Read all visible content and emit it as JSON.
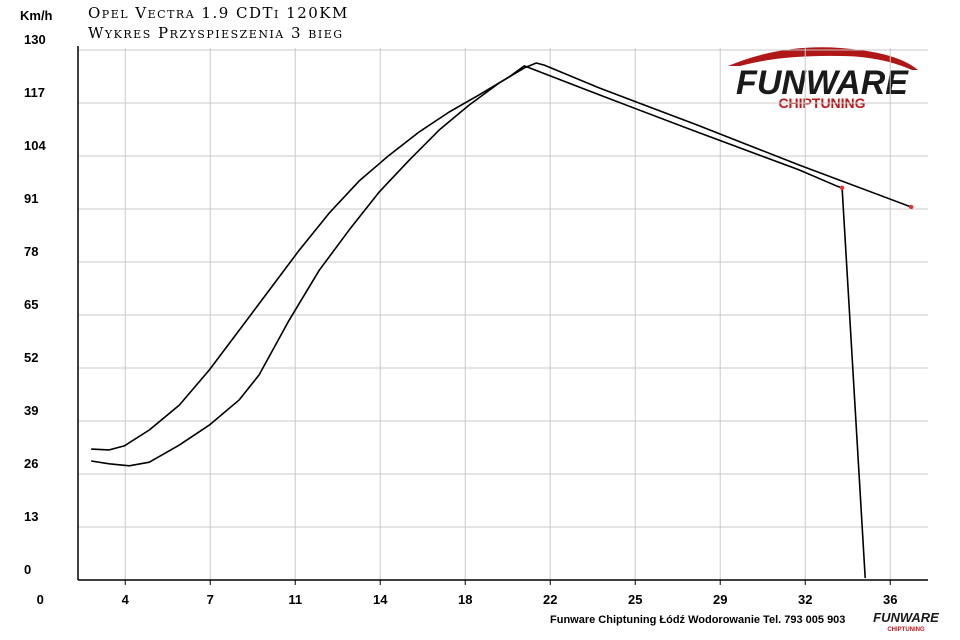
{
  "chart_data": {
    "type": "line",
    "title": "Opel Vectra 1.9 CDTi 120KM",
    "subtitle": "Wykres Przyspieszenia 3 bieg",
    "y_label": "Km/h",
    "footer": "Funware Chiptuning Łódź Wodorowanie Tel. 793 005 903",
    "logo_text": "FUNWARE",
    "logo_subtext": "CHIPTUNING",
    "xlim": [
      1.6,
      37.6
    ],
    "ylim": [
      0,
      130
    ],
    "xticks": [
      {
        "value": 0,
        "label": "0"
      },
      {
        "value": 3.6,
        "label": "4"
      },
      {
        "value": 7.2,
        "label": "7"
      },
      {
        "value": 10.8,
        "label": "11"
      },
      {
        "value": 14.4,
        "label": "14"
      },
      {
        "value": 18,
        "label": "18"
      },
      {
        "value": 21.6,
        "label": "22"
      },
      {
        "value": 25.2,
        "label": "25"
      },
      {
        "value": 28.8,
        "label": "29"
      },
      {
        "value": 32.4,
        "label": "32"
      },
      {
        "value": 36,
        "label": "36"
      }
    ],
    "yticks": [
      0,
      13,
      26,
      39,
      52,
      65,
      78,
      91,
      104,
      117,
      130
    ],
    "grid": true,
    "end_marker_color": "#e8302c",
    "series": [
      {
        "color": "#000000",
        "x": [
          2.16,
          2.92,
          3.56,
          4.62,
          5.89,
          7.16,
          8.43,
          9.7,
          10.97,
          12.24,
          13.51,
          14.78,
          16.05,
          17.32,
          18.59,
          19.86,
          20.5,
          23.67,
          27.91,
          32.14,
          33.75,
          33.96,
          34.94
        ],
        "values": [
          32.1,
          31.9,
          32.9,
          36.8,
          42.9,
          51.5,
          61.3,
          71.1,
          80.9,
          90.0,
          97.9,
          104.2,
          109.9,
          114.8,
          119.0,
          123.4,
          126.1,
          119.0,
          109.7,
          100.6,
          96.6,
          96.2,
          0.5
        ]
      },
      {
        "color": "#000000",
        "x": [
          2.16,
          2.92,
          3.77,
          4.62,
          5.89,
          7.16,
          8.43,
          9.27,
          10.55,
          11.82,
          13.09,
          14.36,
          15.63,
          16.9,
          18.17,
          19.44,
          20.5,
          21.01,
          21.35,
          23.67,
          27.91,
          32.14,
          36.89
        ],
        "values": [
          29.2,
          28.5,
          28.0,
          28.9,
          33.1,
          38.0,
          44.2,
          50.3,
          63.8,
          76.0,
          85.9,
          95.2,
          103.0,
          110.4,
          116.5,
          121.9,
          125.6,
          126.8,
          126.3,
          120.7,
          111.4,
          101.8,
          91.5
        ]
      }
    ]
  }
}
